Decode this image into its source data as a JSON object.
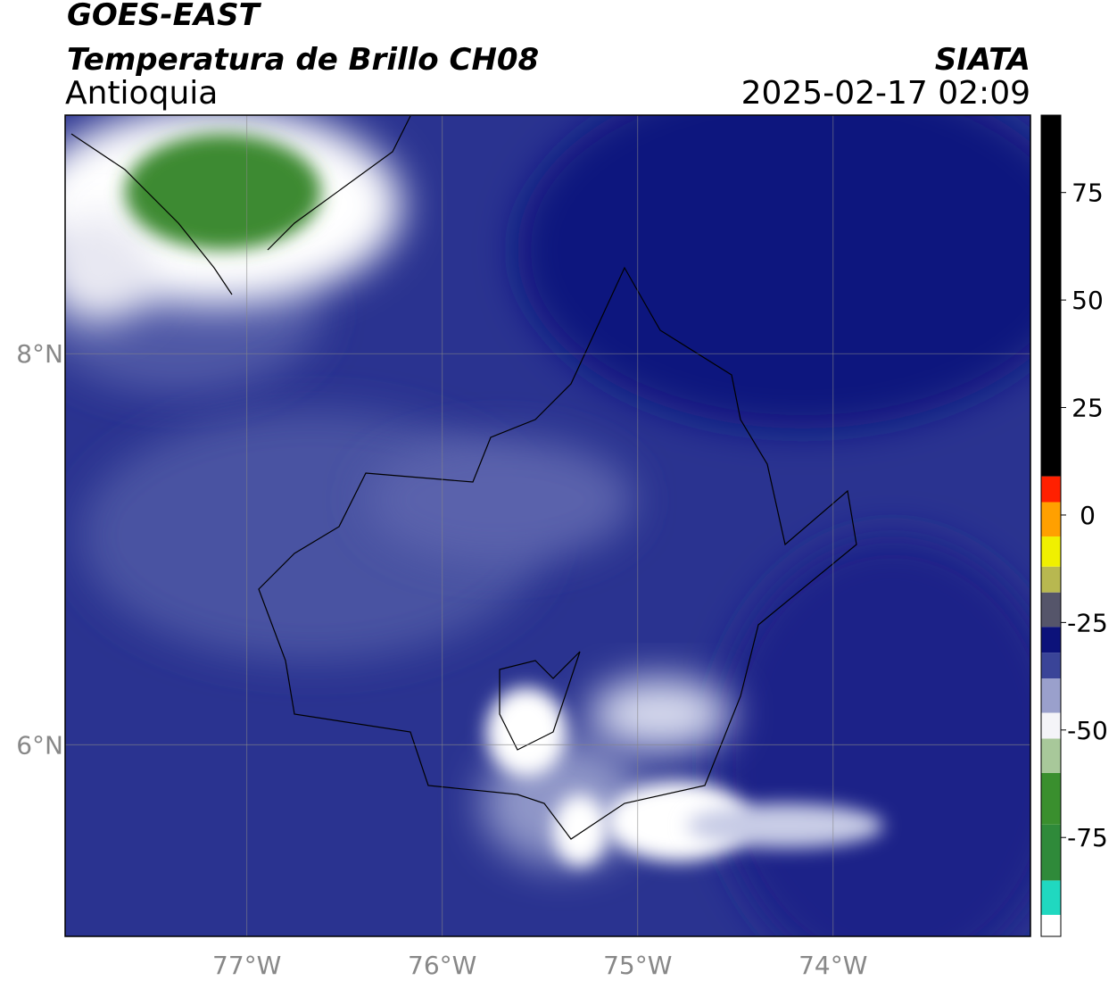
{
  "header": {
    "title": "GOES-EAST",
    "subtitle": "Temperatura de Brillo CH08",
    "region": "Antioquia",
    "source": "SIATA",
    "datetime": "2025-02-17 02:09"
  },
  "map": {
    "xlim": [
      -77.93,
      -72.99
    ],
    "ylim": [
      5.02,
      9.22
    ],
    "xticks": [
      {
        "value": -77,
        "label": "77°W"
      },
      {
        "value": -76,
        "label": "76°W"
      },
      {
        "value": -75,
        "label": "75°W"
      },
      {
        "value": -74,
        "label": "74°W"
      }
    ],
    "yticks": [
      {
        "value": 6,
        "label": "6°N"
      },
      {
        "value": 8,
        "label": "8°N"
      }
    ],
    "grid": true
  },
  "colorbar": {
    "lim": [
      -98,
      93
    ],
    "ticks": [
      -75,
      -50,
      -25,
      0,
      25,
      50,
      75
    ],
    "bands": [
      {
        "from": -98,
        "to": -93,
        "color": "#ffffff"
      },
      {
        "from": -93,
        "to": -85,
        "color": "#20d8c0"
      },
      {
        "from": -85,
        "to": -72,
        "color": "#2f8a3a"
      },
      {
        "from": -72,
        "to": -60,
        "color": "#3a8f2e"
      },
      {
        "from": -60,
        "to": -52,
        "color": "#a8c89a"
      },
      {
        "from": -52,
        "to": -46,
        "color": "#f4f4f8"
      },
      {
        "from": -46,
        "to": -38,
        "color": "#9aa0cc"
      },
      {
        "from": -38,
        "to": -32,
        "color": "#3a4498"
      },
      {
        "from": -32,
        "to": -26,
        "color": "#0c127a"
      },
      {
        "from": -26,
        "to": -18,
        "color": "#55556a"
      },
      {
        "from": -18,
        "to": -12,
        "color": "#b8b850"
      },
      {
        "from": -12,
        "to": -5,
        "color": "#f0f000"
      },
      {
        "from": -5,
        "to": 3,
        "color": "#ffa000"
      },
      {
        "from": 3,
        "to": 9,
        "color": "#ff2000"
      },
      {
        "from": 9,
        "to": 93,
        "color": "#000000"
      }
    ]
  }
}
